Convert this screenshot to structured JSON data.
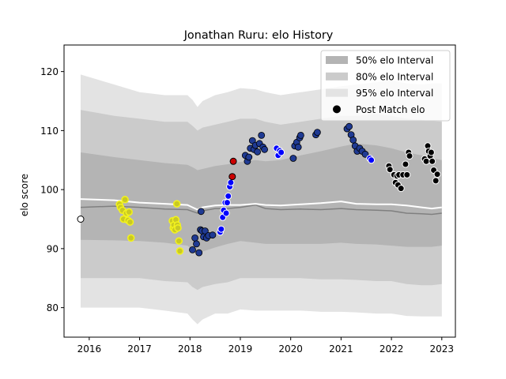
{
  "chart_data": {
    "type": "scatter",
    "title": "Jonathan Ruru: elo History",
    "xlabel": "",
    "ylabel": "elo score",
    "xlim": [
      2015.5,
      2023.27
    ],
    "ylim": [
      75,
      124.5
    ],
    "x_ticks": [
      2016,
      2017,
      2018,
      2019,
      2020,
      2021,
      2022,
      2023
    ],
    "y_ticks": [
      80,
      90,
      100,
      110,
      120
    ],
    "grid": false,
    "legend_position": "top-right",
    "legend": [
      {
        "label": "50% elo Interval",
        "kind": "band50"
      },
      {
        "label": "80% elo Interval",
        "kind": "band80"
      },
      {
        "label": "95% elo Interval",
        "kind": "band95"
      },
      {
        "label": "Post Match elo",
        "kind": "marker"
      }
    ],
    "colors": {
      "band95": "#e3e3e3",
      "band80": "#cbcbcb",
      "band50": "#b4b4b4",
      "median_line": "#808080",
      "mean_line": "#ffffff",
      "yellow_fill": "#c9c924",
      "yellow_edge": "#f3f31e",
      "navy_fill": "#1f3a93",
      "blue_fill": "#0000ff",
      "red_fill": "#cc0000",
      "black_fill": "#000000"
    },
    "band_x": [
      2015.83,
      2016.5,
      2017.0,
      2017.5,
      2017.95,
      2018.05,
      2018.15,
      2018.25,
      2018.5,
      2018.75,
      2019.0,
      2019.3,
      2019.5,
      2019.8,
      2020.2,
      2020.6,
      2021.0,
      2021.3,
      2021.7,
      2022.0,
      2022.3,
      2022.6,
      2022.8,
      2023.0
    ],
    "band95_upper": [
      119.5,
      117.8,
      116.5,
      116.0,
      116.0,
      115.2,
      114.0,
      115.0,
      116.0,
      116.5,
      117.2,
      117.0,
      116.5,
      116.0,
      116.5,
      117.0,
      117.5,
      117.8,
      118.2,
      118.5,
      118.0,
      117.8,
      118.0,
      118.0
    ],
    "band80_upper": [
      113.5,
      112.5,
      112.0,
      111.5,
      111.5,
      110.8,
      110.0,
      110.5,
      111.0,
      111.5,
      112.0,
      112.0,
      111.5,
      111.0,
      111.5,
      112.0,
      112.5,
      112.5,
      112.8,
      112.5,
      112.0,
      111.8,
      111.6,
      111.5
    ],
    "band50_upper": [
      106.3,
      105.5,
      105.0,
      104.5,
      104.2,
      103.8,
      103.3,
      103.5,
      104.0,
      104.3,
      104.7,
      105.0,
      104.8,
      105.0,
      105.8,
      106.5,
      107.3,
      107.8,
      107.5,
      107.0,
      106.3,
      105.8,
      105.3,
      105.0
    ],
    "band50_lower": [
      91.5,
      91.4,
      91.3,
      91.0,
      90.5,
      89.8,
      89.0,
      89.5,
      90.2,
      90.8,
      91.3,
      91.0,
      90.8,
      90.8,
      90.8,
      90.8,
      91.0,
      90.8,
      90.7,
      90.5,
      90.3,
      90.3,
      90.3,
      90.5
    ],
    "band80_lower": [
      85.0,
      85.0,
      85.0,
      84.5,
      84.3,
      83.5,
      83.0,
      83.5,
      84.0,
      84.3,
      85.0,
      85.0,
      85.0,
      85.0,
      85.0,
      84.8,
      84.8,
      84.7,
      84.5,
      84.5,
      84.0,
      83.8,
      83.8,
      84.0
    ],
    "band95_lower": [
      80.0,
      80.0,
      80.0,
      79.5,
      79.0,
      78.0,
      77.2,
      78.0,
      79.0,
      79.0,
      79.7,
      79.5,
      79.5,
      79.5,
      79.5,
      79.3,
      79.3,
      79.2,
      79.0,
      79.0,
      78.6,
      78.5,
      78.5,
      78.5
    ],
    "median_line": [
      97.0,
      97.2,
      97.0,
      96.7,
      96.6,
      96.3,
      96.0,
      96.4,
      96.8,
      96.8,
      97.0,
      97.4,
      96.8,
      96.6,
      96.7,
      96.6,
      96.8,
      96.6,
      96.5,
      96.4,
      96.0,
      95.9,
      95.8,
      96.0
    ],
    "mean_line": [
      98.4,
      98.2,
      97.8,
      97.6,
      97.4,
      97.0,
      96.6,
      97.0,
      97.3,
      97.4,
      97.4,
      97.6,
      97.4,
      97.3,
      97.5,
      97.7,
      98.0,
      97.6,
      97.5,
      97.5,
      97.3,
      97.0,
      96.8,
      97.0
    ],
    "series": [
      {
        "group": "white",
        "points": [
          [
            2015.83,
            95.0
          ]
        ]
      },
      {
        "group": "yellow",
        "points": [
          [
            2016.6,
            97.5
          ],
          [
            2016.62,
            97.0
          ],
          [
            2016.66,
            96.5
          ],
          [
            2016.68,
            95.0
          ],
          [
            2016.71,
            98.3
          ],
          [
            2016.74,
            96.0
          ],
          [
            2016.77,
            94.8
          ],
          [
            2016.79,
            96.2
          ],
          [
            2016.81,
            94.5
          ],
          [
            2016.83,
            91.8
          ],
          [
            2017.65,
            94.7
          ],
          [
            2017.67,
            93.5
          ],
          [
            2017.68,
            94.0
          ],
          [
            2017.7,
            93.2
          ],
          [
            2017.72,
            94.9
          ],
          [
            2017.74,
            97.6
          ],
          [
            2017.75,
            94.0
          ],
          [
            2017.76,
            93.5
          ],
          [
            2017.78,
            91.3
          ],
          [
            2017.8,
            89.6
          ]
        ]
      },
      {
        "group": "navy",
        "points": [
          [
            2018.05,
            89.8
          ],
          [
            2018.1,
            91.8
          ],
          [
            2018.13,
            90.8
          ],
          [
            2018.18,
            89.3
          ],
          [
            2018.21,
            93.2
          ],
          [
            2018.22,
            96.3
          ],
          [
            2018.24,
            93.0
          ],
          [
            2018.27,
            92.0
          ],
          [
            2018.3,
            93.0
          ],
          [
            2018.33,
            91.8
          ],
          [
            2018.37,
            92.2
          ],
          [
            2018.45,
            92.3
          ],
          [
            2019.1,
            105.8
          ],
          [
            2019.14,
            104.8
          ],
          [
            2019.17,
            105.5
          ],
          [
            2019.2,
            107.0
          ],
          [
            2019.24,
            108.3
          ],
          [
            2019.27,
            106.8
          ],
          [
            2019.3,
            107.5
          ],
          [
            2019.34,
            106.4
          ],
          [
            2019.38,
            107.8
          ],
          [
            2019.42,
            109.2
          ],
          [
            2019.45,
            107.2
          ],
          [
            2019.48,
            106.8
          ],
          [
            2020.05,
            105.3
          ],
          [
            2020.08,
            107.4
          ],
          [
            2020.12,
            108.0
          ],
          [
            2020.15,
            107.2
          ],
          [
            2020.18,
            108.8
          ],
          [
            2020.2,
            109.2
          ],
          [
            2020.5,
            109.3
          ],
          [
            2020.53,
            109.7
          ],
          [
            2021.12,
            110.3
          ],
          [
            2021.16,
            110.7
          ],
          [
            2021.2,
            109.3
          ],
          [
            2021.24,
            108.4
          ],
          [
            2021.28,
            107.4
          ],
          [
            2021.32,
            106.5
          ],
          [
            2021.37,
            107.0
          ],
          [
            2021.42,
            106.5
          ],
          [
            2021.48,
            106.0
          ]
        ]
      },
      {
        "group": "blue",
        "points": [
          [
            2018.6,
            92.8
          ],
          [
            2018.62,
            93.3
          ],
          [
            2018.65,
            95.3
          ],
          [
            2018.67,
            96.5
          ],
          [
            2018.7,
            97.8
          ],
          [
            2018.72,
            96.0
          ],
          [
            2018.74,
            97.8
          ],
          [
            2018.76,
            98.9
          ],
          [
            2018.79,
            100.5
          ],
          [
            2018.81,
            101.2
          ],
          [
            2019.72,
            107.0
          ],
          [
            2019.75,
            105.8
          ],
          [
            2019.78,
            106.6
          ],
          [
            2019.81,
            106.3
          ],
          [
            2021.57,
            105.3
          ],
          [
            2021.6,
            105.0
          ]
        ]
      },
      {
        "group": "red",
        "points": [
          [
            2018.84,
            102.2
          ],
          [
            2018.86,
            104.8
          ]
        ]
      },
      {
        "group": "black",
        "points": [
          [
            2021.95,
            104.0
          ],
          [
            2021.97,
            103.4
          ],
          [
            2022.05,
            102.5
          ],
          [
            2022.08,
            101.2
          ],
          [
            2022.11,
            102.3
          ],
          [
            2022.13,
            100.8
          ],
          [
            2022.15,
            102.5
          ],
          [
            2022.19,
            100.2
          ],
          [
            2022.23,
            102.5
          ],
          [
            2022.28,
            104.3
          ],
          [
            2022.31,
            102.5
          ],
          [
            2022.34,
            106.3
          ],
          [
            2022.36,
            105.7
          ],
          [
            2022.66,
            105.2
          ],
          [
            2022.69,
            104.8
          ],
          [
            2022.72,
            107.4
          ],
          [
            2022.74,
            106.5
          ],
          [
            2022.77,
            105.7
          ],
          [
            2022.79,
            106.3
          ],
          [
            2022.81,
            104.8
          ],
          [
            2022.84,
            103.3
          ],
          [
            2022.88,
            101.5
          ],
          [
            2022.91,
            102.6
          ]
        ]
      }
    ]
  }
}
